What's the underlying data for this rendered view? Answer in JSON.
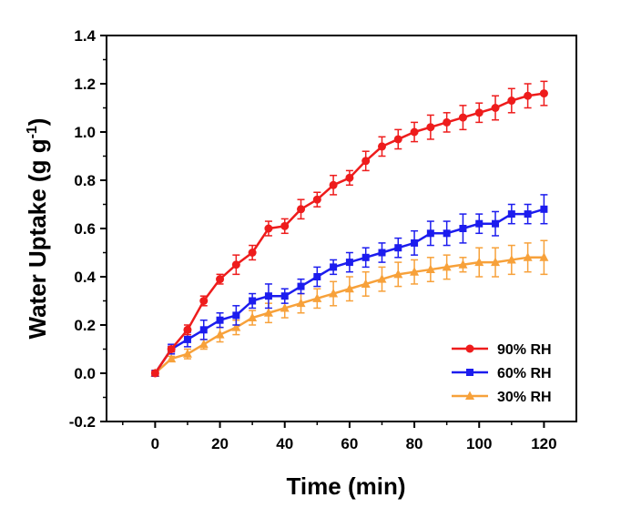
{
  "chart_data": {
    "type": "line",
    "title": "",
    "xlabel": "Time (min)",
    "ylabel": {
      "main": "Water Uptake (g g",
      "sup": "-1",
      "end": ")"
    },
    "xlim": [
      -15,
      130
    ],
    "ylim": [
      -0.2,
      1.4
    ],
    "xticks": [
      0,
      20,
      40,
      60,
      80,
      100,
      120
    ],
    "yticks": [
      -0.2,
      0.0,
      0.2,
      0.4,
      0.6,
      0.8,
      1.0,
      1.2,
      1.4
    ],
    "ytick_labels": [
      "-0.2",
      "0.0",
      "0.2",
      "0.4",
      "0.6",
      "0.8",
      "1.0",
      "1.2",
      "1.4"
    ],
    "legend_position": "bottom-right",
    "grid": false,
    "x": [
      0,
      5,
      10,
      15,
      20,
      25,
      30,
      35,
      40,
      45,
      50,
      55,
      60,
      65,
      70,
      75,
      80,
      85,
      90,
      95,
      100,
      105,
      110,
      115,
      120
    ],
    "series": [
      {
        "name": "90% RH",
        "color": "#ee1c1c",
        "marker": "circle",
        "values": [
          0.0,
          0.1,
          0.18,
          0.3,
          0.39,
          0.45,
          0.5,
          0.6,
          0.61,
          0.68,
          0.72,
          0.78,
          0.81,
          0.88,
          0.94,
          0.97,
          1.0,
          1.02,
          1.04,
          1.06,
          1.08,
          1.1,
          1.13,
          1.15,
          1.16
        ],
        "errors": [
          0.01,
          0.01,
          0.02,
          0.02,
          0.02,
          0.04,
          0.03,
          0.03,
          0.03,
          0.04,
          0.03,
          0.04,
          0.03,
          0.04,
          0.04,
          0.04,
          0.04,
          0.05,
          0.04,
          0.05,
          0.04,
          0.05,
          0.05,
          0.05,
          0.05
        ]
      },
      {
        "name": "60% RH",
        "color": "#1c1cee",
        "marker": "square",
        "values": [
          0.0,
          0.1,
          0.14,
          0.18,
          0.22,
          0.24,
          0.3,
          0.32,
          0.32,
          0.36,
          0.4,
          0.44,
          0.46,
          0.48,
          0.5,
          0.52,
          0.54,
          0.58,
          0.58,
          0.6,
          0.62,
          0.62,
          0.66,
          0.66,
          0.68
        ],
        "errors": [
          0.01,
          0.02,
          0.03,
          0.04,
          0.03,
          0.04,
          0.03,
          0.05,
          0.03,
          0.03,
          0.04,
          0.03,
          0.04,
          0.04,
          0.04,
          0.04,
          0.05,
          0.05,
          0.05,
          0.06,
          0.04,
          0.05,
          0.04,
          0.04,
          0.06
        ]
      },
      {
        "name": "30% RH",
        "color": "#f7a13a",
        "marker": "triangle",
        "values": [
          0.0,
          0.06,
          0.08,
          0.12,
          0.16,
          0.19,
          0.23,
          0.25,
          0.27,
          0.29,
          0.31,
          0.33,
          0.35,
          0.37,
          0.39,
          0.41,
          0.42,
          0.43,
          0.44,
          0.45,
          0.46,
          0.46,
          0.47,
          0.48,
          0.48
        ],
        "errors": [
          0.01,
          0.01,
          0.02,
          0.02,
          0.03,
          0.03,
          0.03,
          0.04,
          0.04,
          0.04,
          0.04,
          0.05,
          0.05,
          0.05,
          0.05,
          0.05,
          0.05,
          0.05,
          0.05,
          0.03,
          0.06,
          0.06,
          0.06,
          0.06,
          0.07
        ]
      }
    ]
  }
}
